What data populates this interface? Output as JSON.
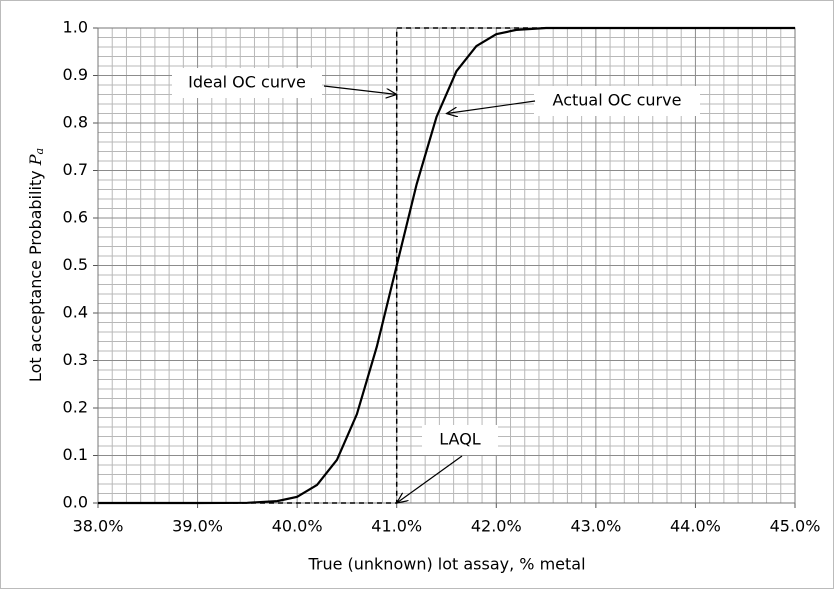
{
  "chart_data": {
    "type": "line",
    "x_label": "True (unknown) lot assay, % metal",
    "y_label": "Lot acceptance Probability",
    "y_label_symbol": "P",
    "y_label_subscript": "a",
    "xlim": [
      38,
      45
    ],
    "ylim": [
      0,
      1
    ],
    "xticks": [
      {
        "value": 38,
        "label": "38.0%"
      },
      {
        "value": 39,
        "label": "39.0%"
      },
      {
        "value": 40,
        "label": "40.0%"
      },
      {
        "value": 41,
        "label": "41.0%"
      },
      {
        "value": 42,
        "label": "42.0%"
      },
      {
        "value": 43,
        "label": "43.0%"
      },
      {
        "value": 44,
        "label": "44.0%"
      },
      {
        "value": 45,
        "label": "45.0%"
      }
    ],
    "yticks": [
      {
        "value": 0,
        "label": "0.0"
      },
      0.1,
      0.2,
      0.3,
      0.4,
      0.5,
      0.6,
      0.7,
      0.8,
      0.9,
      {
        "value": 1,
        "label": "1.0"
      }
    ],
    "grid": true,
    "minor_x_per_major": 7,
    "minor_y_per_major": 5,
    "series": [
      {
        "name": "Actual OC curve",
        "color": "#000000",
        "dashed": false,
        "x": [
          38,
          39,
          39.5,
          39.8,
          40,
          40.2,
          40.4,
          40.6,
          40.8,
          41,
          41.2,
          41.4,
          41.6,
          41.8,
          42,
          42.2,
          42.5,
          43,
          45
        ],
        "values": [
          0,
          0,
          0.0004,
          0.004,
          0.013,
          0.038,
          0.091,
          0.187,
          0.329,
          0.5,
          0.671,
          0.813,
          0.909,
          0.962,
          0.987,
          0.996,
          1,
          1,
          1
        ]
      },
      {
        "name": "Ideal OC curve",
        "color": "#000000",
        "dashed": true,
        "x": [
          38,
          41,
          41,
          45
        ],
        "values": [
          0,
          0,
          1,
          1
        ]
      }
    ],
    "annotations": [
      {
        "text": "Ideal OC curve",
        "x": 41,
        "y": 0.86
      },
      {
        "text": "Actual OC curve",
        "x": 41.5,
        "y": 0.82
      },
      {
        "text": "LAQL",
        "x": 41,
        "y": 0
      }
    ]
  }
}
